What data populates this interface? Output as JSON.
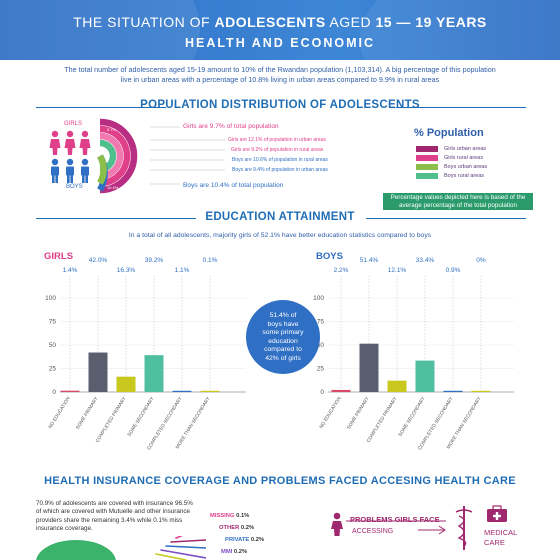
{
  "header": {
    "title_pre": "THE SITUATION OF ",
    "title_bold": "ADOLESCENTS",
    "title_post": " AGED ",
    "title_ages": "15 — 19 YEARS",
    "subtitle": "HEALTH AND ECONOMIC"
  },
  "intro": {
    "line1": "The total number of adolescents aged 15-19 amount to 10% of the Rwandan population (1,103,314). A big percentage of this population",
    "line2": "live in urban areas with a percentage of 10.8% living in urban areas compared to 9.9% in rural areas"
  },
  "population": {
    "title": "POPULATION DISTRIBUTION OF ADOLESCENTS",
    "girls_label": "GIRLS",
    "boys_label": "BOYS",
    "girls_total": "Girls are 9.7% of total population",
    "girls_urban": "Girls are 12.1% of population in urban areas",
    "girls_rural": "Girls are 9.2% of population in rural areas",
    "boys_rural": "Boys are 10.6% of population in rural areas",
    "boys_urban": "Boys are 9.4% of population in urban areas",
    "boys_total": "Boys are 10.4% of total population",
    "ring_values": [
      "9.7%",
      "12.1%",
      "9.2%",
      "10.6%",
      "9.4%",
      "10.4%"
    ],
    "legend_title": "% Population",
    "legend": [
      {
        "label": "Girls urban areas",
        "color": "#a0286e"
      },
      {
        "label": "Girls rural areas",
        "color": "#e0408a"
      },
      {
        "label": "Boys urban areas",
        "color": "#8cbf4a"
      },
      {
        "label": "Boys rural areas",
        "color": "#4fbf8e"
      }
    ],
    "note": "Percentage values depicted here is based of the average percentage of the total population"
  },
  "education": {
    "title": "EDUCATION ATTAINMENT",
    "subtitle": "In a total of  all adolescents, majority girls of 52.1% have better  education statistics compared to boys",
    "girls_head": "GIRLS",
    "boys_head": "BOYS",
    "axis_ticks": [
      "100",
      "75",
      "50",
      "25",
      "0"
    ],
    "circle_text": [
      "51.4% of",
      "boys have",
      "some primary",
      "education",
      "compared to",
      "42% of girls"
    ],
    "chart_data": [
      {
        "type": "bar",
        "title": "GIRLS",
        "categories": [
          "NO EDUCATION",
          "SOME PRIMARY",
          "COMPLETED PRIMARY",
          "SOME SECONDARY",
          "COMPLETED SECONDARY",
          "MORE THAN SECONDARY"
        ],
        "values": [
          1.4,
          42.0,
          16.3,
          39.2,
          1.1,
          0.1
        ],
        "labels": [
          "1.4%",
          "42.0%",
          "16.3%",
          "39.2%",
          "1.1%",
          "0.1%"
        ],
        "colors": [
          "#d84a6a",
          "#5a5f70",
          "#c8c81e",
          "#4fbfa0",
          "#2f6fc4",
          "#c8c81e"
        ],
        "ylim": [
          0,
          100
        ]
      },
      {
        "type": "bar",
        "title": "BOYS",
        "categories": [
          "NO EDUCATION",
          "SOME PRIMARY",
          "COMPLETED PRIMARY",
          "SOME SECONDARY",
          "COMPLETED SECONDARY",
          "MORE THAN SECONDARY"
        ],
        "values": [
          2.2,
          51.4,
          12.1,
          33.4,
          0.9,
          0.0
        ],
        "labels": [
          "2.2%",
          "51.4%",
          "12.1%",
          "33.4%",
          "0.9%",
          "0%"
        ],
        "colors": [
          "#d84a6a",
          "#5a5f70",
          "#c8c81e",
          "#4fbfa0",
          "#2f6fc4",
          "#c8c81e"
        ],
        "ylim": [
          0,
          100
        ]
      }
    ]
  },
  "health": {
    "title": "HEALTH INSURANCE COVERAGE AND PROBLEMS FACED ACCESING HEALTH CARE",
    "text": "70.9% of adolescents are  covered with insurance 96.5% of which are covered with Mutuelle and other insurance providers share the remaining 3.4% while 0.1% miss insurance coverage.",
    "pie_labels": [
      {
        "name": "MISSING",
        "value": "0.1%",
        "color": "#e0408a"
      },
      {
        "name": "OTHER",
        "value": "0.2%",
        "color": "#a0286e"
      },
      {
        "name": "PRIVATE",
        "value": "0.2%",
        "color": "#2f6fc4"
      },
      {
        "name": "MMI",
        "value": "0.2%",
        "color": "#7a4fc4"
      }
    ],
    "problems_line1": "PROBLEMS GIRLS FACE",
    "problems_line2": "ACCESSING",
    "medical_line1": "MEDICAL",
    "medical_line2": "CARE"
  }
}
